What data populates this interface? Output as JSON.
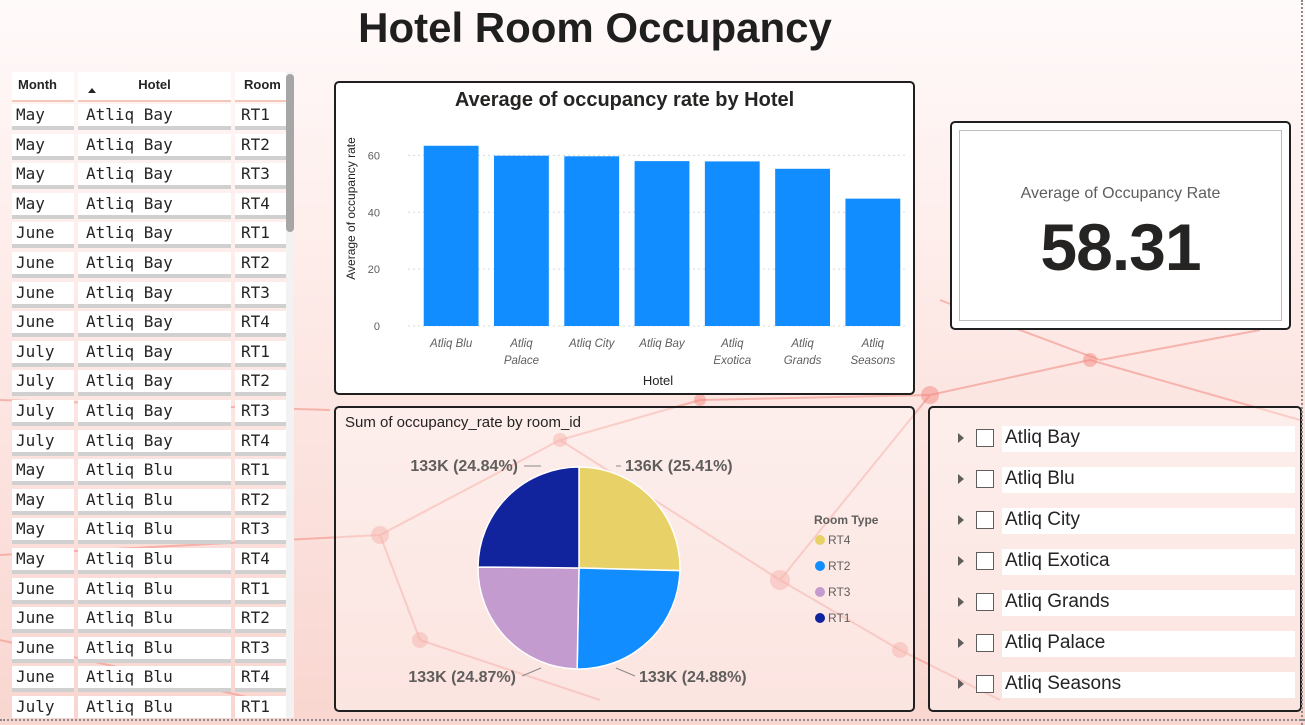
{
  "page": {
    "title": "Hotel Room Occupancy"
  },
  "table": {
    "columns": {
      "month": "Month",
      "hotel": "Hotel",
      "room": "Room"
    },
    "rows": [
      {
        "month": "May",
        "hotel": "Atliq Bay",
        "room": "RT1"
      },
      {
        "month": "May",
        "hotel": "Atliq Bay",
        "room": "RT2"
      },
      {
        "month": "May",
        "hotel": "Atliq Bay",
        "room": "RT3"
      },
      {
        "month": "May",
        "hotel": "Atliq Bay",
        "room": "RT4"
      },
      {
        "month": "June",
        "hotel": "Atliq Bay",
        "room": "RT1"
      },
      {
        "month": "June",
        "hotel": "Atliq Bay",
        "room": "RT2"
      },
      {
        "month": "June",
        "hotel": "Atliq Bay",
        "room": "RT3"
      },
      {
        "month": "June",
        "hotel": "Atliq Bay",
        "room": "RT4"
      },
      {
        "month": "July",
        "hotel": "Atliq Bay",
        "room": "RT1"
      },
      {
        "month": "July",
        "hotel": "Atliq Bay",
        "room": "RT2"
      },
      {
        "month": "July",
        "hotel": "Atliq Bay",
        "room": "RT3"
      },
      {
        "month": "July",
        "hotel": "Atliq Bay",
        "room": "RT4"
      },
      {
        "month": "May",
        "hotel": "Atliq Blu",
        "room": "RT1"
      },
      {
        "month": "May",
        "hotel": "Atliq Blu",
        "room": "RT2"
      },
      {
        "month": "May",
        "hotel": "Atliq Blu",
        "room": "RT3"
      },
      {
        "month": "May",
        "hotel": "Atliq Blu",
        "room": "RT4"
      },
      {
        "month": "June",
        "hotel": "Atliq Blu",
        "room": "RT1"
      },
      {
        "month": "June",
        "hotel": "Atliq Blu",
        "room": "RT2"
      },
      {
        "month": "June",
        "hotel": "Atliq Blu",
        "room": "RT3"
      },
      {
        "month": "June",
        "hotel": "Atliq Blu",
        "room": "RT4"
      },
      {
        "month": "July",
        "hotel": "Atliq Blu",
        "room": "RT1"
      }
    ]
  },
  "kpi": {
    "label": "Average of Occupancy Rate",
    "value": "58.31"
  },
  "slicer": {
    "items": [
      "Atliq Bay",
      "Atliq Blu",
      "Atliq City",
      "Atliq Exotica",
      "Atliq Grands",
      "Atliq Palace",
      "Atliq Seasons"
    ]
  },
  "colors": {
    "bar": "#118dff",
    "RT4": "#e8d166",
    "RT2": "#118dff",
    "RT3": "#c39bce",
    "RT1": "#12239e"
  },
  "chart_data": [
    {
      "type": "bar",
      "title": "Average of occupancy rate by Hotel",
      "xlabel": "Hotel",
      "ylabel": "Average of occupancy rate",
      "categories": [
        [
          "Atliq Blu"
        ],
        [
          "Atliq",
          "Palace"
        ],
        [
          "Atliq City"
        ],
        [
          "Atliq Bay"
        ],
        [
          "Atliq",
          "Exotica"
        ],
        [
          "Atliq",
          "Grands"
        ],
        [
          "Atliq",
          "Seasons"
        ]
      ],
      "values": [
        63.4,
        59.9,
        59.7,
        58.0,
        57.9,
        55.3,
        44.8
      ],
      "yticks": [
        0,
        20,
        40,
        60
      ],
      "ylim": [
        0,
        70
      ],
      "grid": true
    },
    {
      "type": "pie",
      "title": "Sum of occupancy_rate by room_id",
      "legend_title": "Room Type",
      "legend_position": "right",
      "slices": [
        {
          "name": "RT4",
          "percent": 25.41,
          "label": "136K (25.41%)"
        },
        {
          "name": "RT2",
          "percent": 24.88,
          "label": "133K (24.88%)"
        },
        {
          "name": "RT3",
          "percent": 24.87,
          "label": "133K (24.87%)"
        },
        {
          "name": "RT1",
          "percent": 24.84,
          "label": "133K (24.84%)"
        }
      ]
    }
  ]
}
